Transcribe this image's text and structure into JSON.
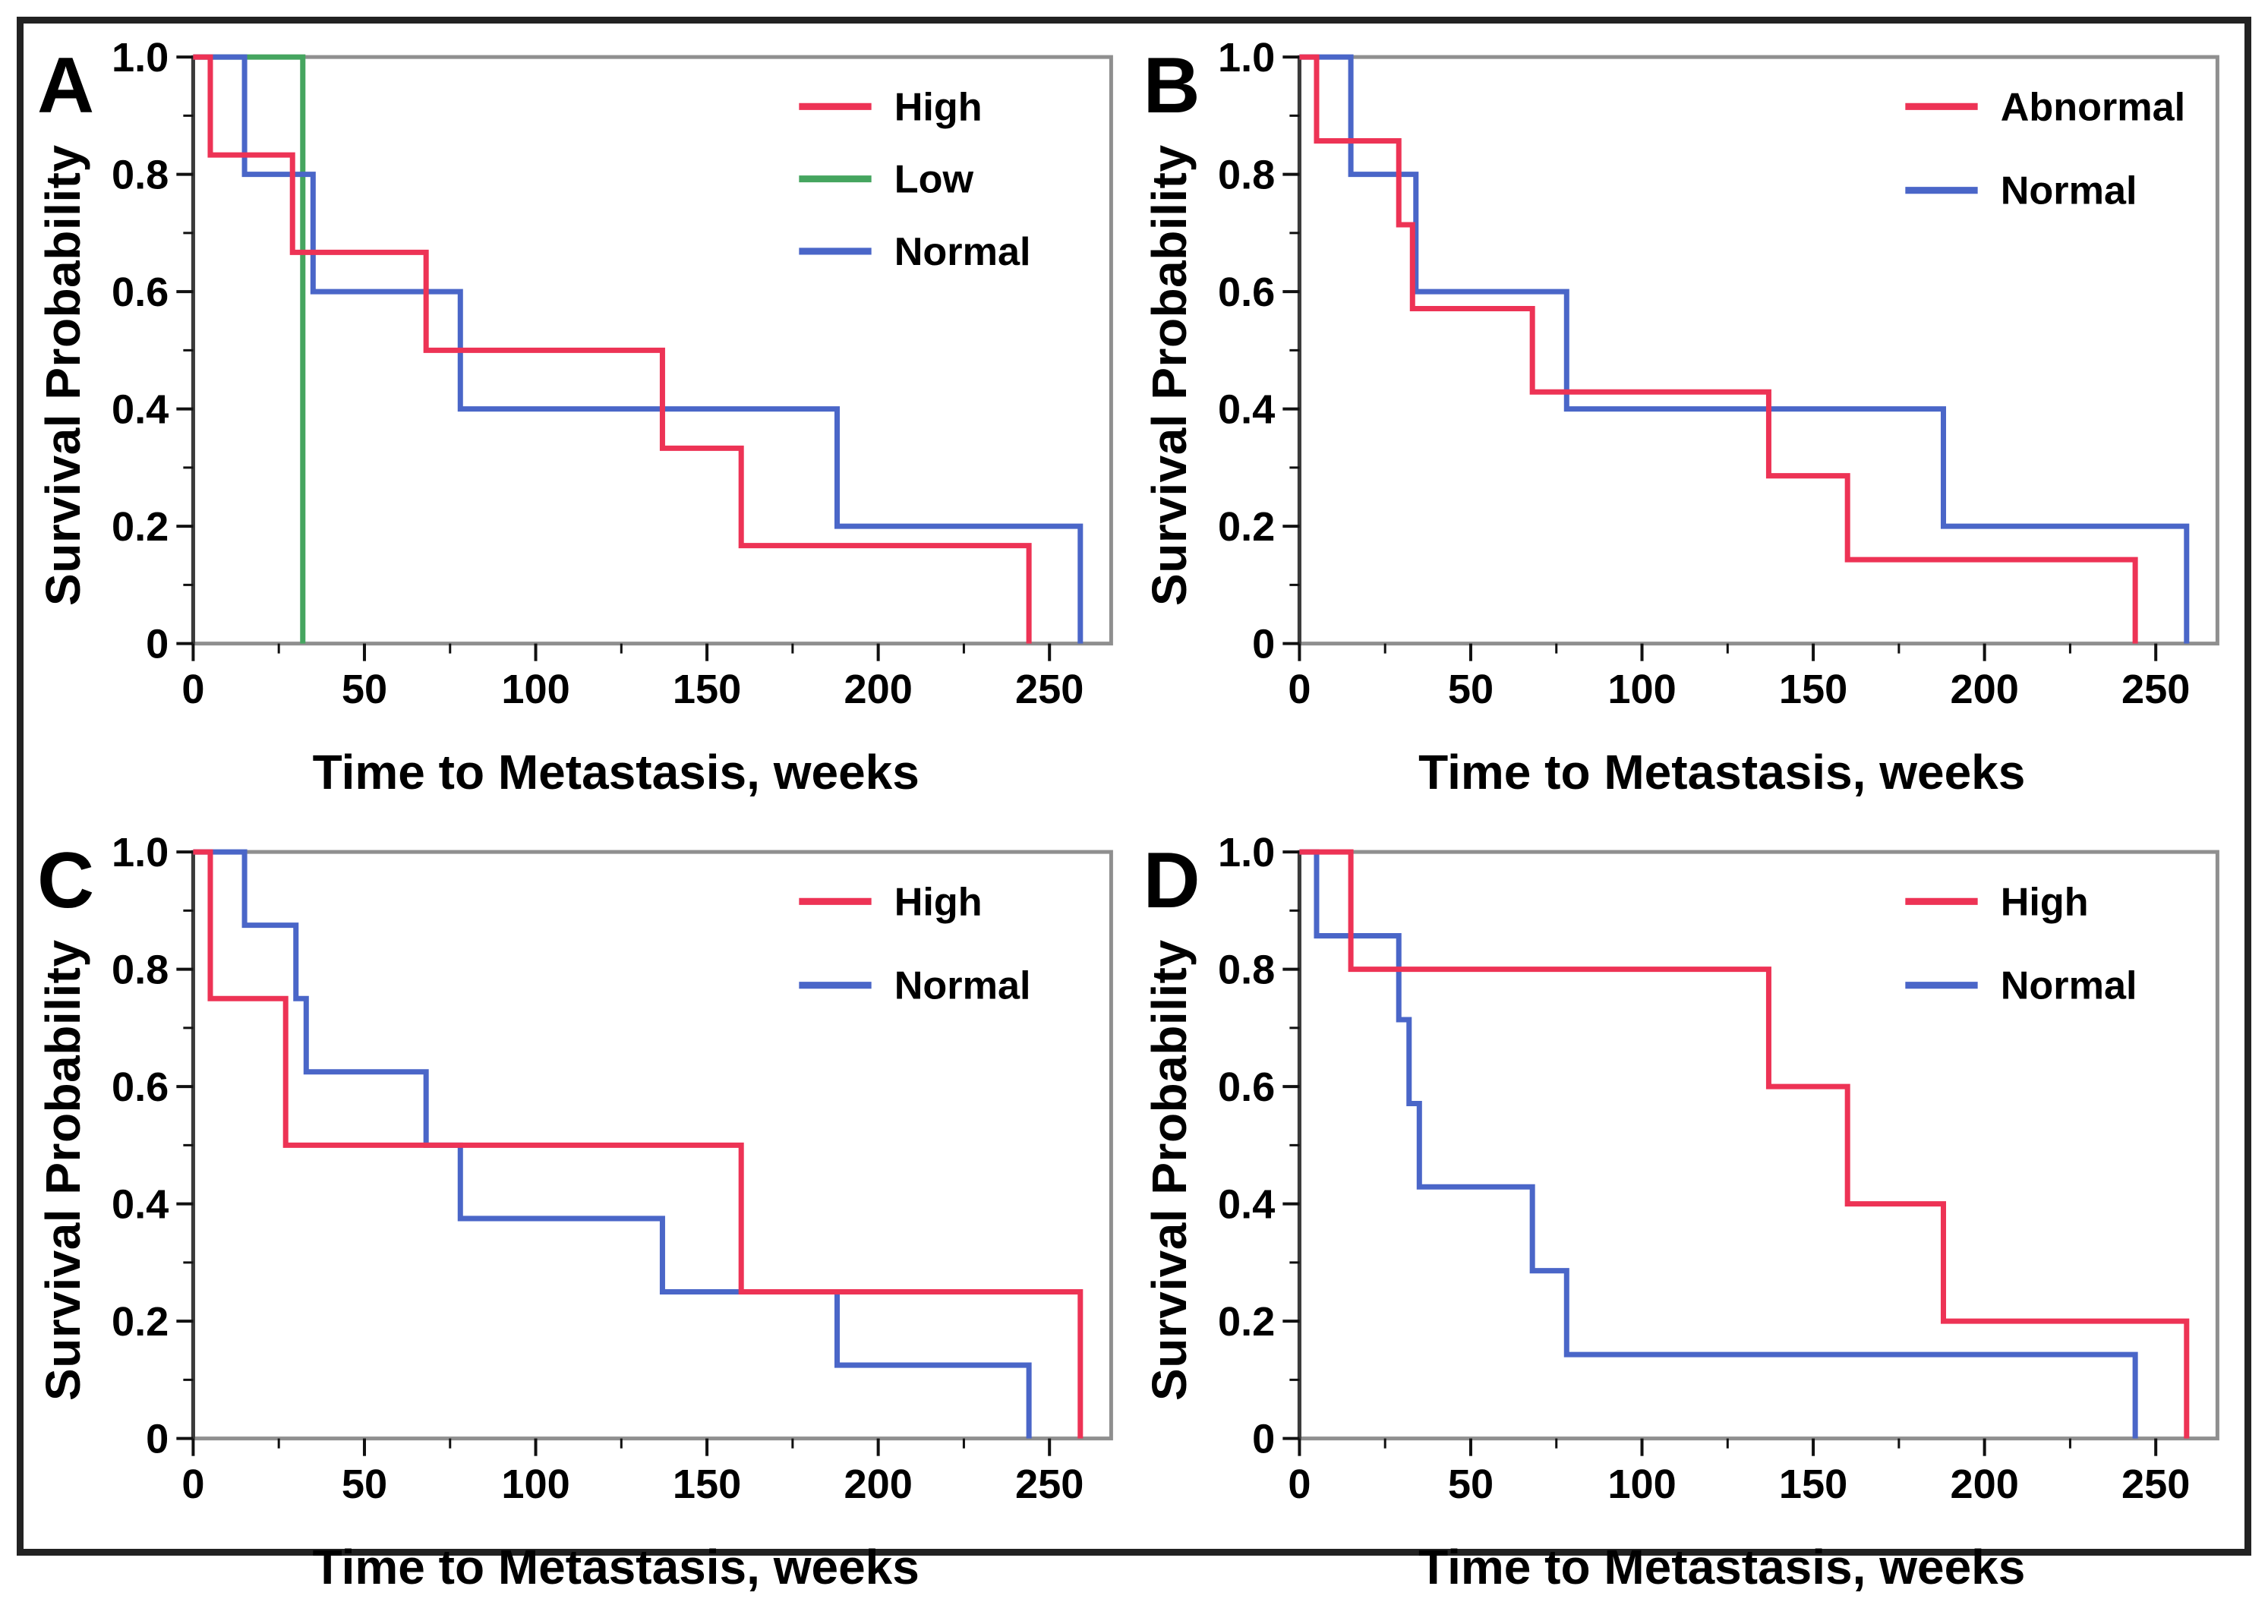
{
  "figure": {
    "background": "#ffffff",
    "border_color": "#222222",
    "frame_color": "#8f8f8f",
    "axis_color": "#3a3a3a",
    "tick_color": "#111111",
    "text_color": "#000000",
    "series_colors": {
      "red": "#ED3355",
      "green": "#45A55F",
      "blue": "#4A66C8"
    }
  },
  "chart_data": [
    {
      "panel_label": "A",
      "type": "line",
      "subtype": "kaplan-meier-step",
      "title": "",
      "xlabel": "Time to Metastasis, weeks",
      "ylabel": "Survival Probability",
      "xlim": [
        0,
        268
      ],
      "ylim": [
        0,
        1.0
      ],
      "xticks": [
        0,
        50,
        100,
        150,
        200,
        250
      ],
      "xtick_labels": [
        "0",
        "50",
        "100",
        "150",
        "200",
        "250"
      ],
      "xticks_minor": [
        25,
        75,
        125,
        175,
        225
      ],
      "yticks": [
        0,
        0.2,
        0.4,
        0.6,
        0.8,
        1.0
      ],
      "ytick_labels": [
        "0",
        "0.2",
        "0.4",
        "0.6",
        "0.8",
        "1.0"
      ],
      "yticks_minor": [
        0.1,
        0.3,
        0.5,
        0.7,
        0.9
      ],
      "grid": false,
      "legend_position": "top-right",
      "start_probability": 1.0,
      "series": [
        {
          "name": "High",
          "color": "#ED3355",
          "events": [
            [
              5,
              0.833
            ],
            [
              29,
              0.667
            ],
            [
              68,
              0.5
            ],
            [
              137,
              0.333
            ],
            [
              160,
              0.167
            ],
            [
              244,
              0
            ]
          ]
        },
        {
          "name": "Low",
          "color": "#45A55F",
          "events": [
            [
              32,
              0
            ]
          ]
        },
        {
          "name": "Normal",
          "color": "#4A66C8",
          "events": [
            [
              15,
              0.8
            ],
            [
              35,
              0.6
            ],
            [
              78,
              0.4
            ],
            [
              188,
              0.2
            ],
            [
              259,
              0
            ]
          ]
        }
      ],
      "draw_order": [
        1,
        2,
        0
      ],
      "legend_rows_y": [
        95,
        190,
        285
      ]
    },
    {
      "panel_label": "B",
      "type": "line",
      "subtype": "kaplan-meier-step",
      "title": "",
      "xlabel": "Time to Metastasis, weeks",
      "ylabel": "Survival Probability",
      "xlim": [
        0,
        268
      ],
      "ylim": [
        0,
        1.0
      ],
      "xticks": [
        0,
        50,
        100,
        150,
        200,
        250
      ],
      "xtick_labels": [
        "0",
        "50",
        "100",
        "150",
        "200",
        "250"
      ],
      "xticks_minor": [
        25,
        75,
        125,
        175,
        225
      ],
      "yticks": [
        0,
        0.2,
        0.4,
        0.6,
        0.8,
        1.0
      ],
      "ytick_labels": [
        "0",
        "0.2",
        "0.4",
        "0.6",
        "0.8",
        "1.0"
      ],
      "yticks_minor": [
        0.1,
        0.3,
        0.5,
        0.7,
        0.9
      ],
      "grid": false,
      "legend_position": "top-right",
      "start_probability": 1.0,
      "series": [
        {
          "name": "Abnormal",
          "color": "#ED3355",
          "events": [
            [
              5,
              0.857
            ],
            [
              29,
              0.714
            ],
            [
              33,
              0.571
            ],
            [
              68,
              0.429
            ],
            [
              137,
              0.286
            ],
            [
              160,
              0.143
            ],
            [
              244,
              0
            ]
          ]
        },
        {
          "name": "Normal",
          "color": "#4A66C8",
          "events": [
            [
              15,
              0.8
            ],
            [
              34,
              0.6
            ],
            [
              78,
              0.4
            ],
            [
              188,
              0.2
            ],
            [
              259,
              0
            ]
          ]
        }
      ],
      "draw_order": [
        1,
        0
      ],
      "legend_rows_y": [
        95,
        205
      ]
    },
    {
      "panel_label": "C",
      "type": "line",
      "subtype": "kaplan-meier-step",
      "title": "",
      "xlabel": "Time to Metastasis, weeks",
      "ylabel": "Survival Probability",
      "xlim": [
        0,
        268
      ],
      "ylim": [
        0,
        1.0
      ],
      "xticks": [
        0,
        50,
        100,
        150,
        200,
        250
      ],
      "xtick_labels": [
        "0",
        "50",
        "100",
        "150",
        "200",
        "250"
      ],
      "xticks_minor": [
        25,
        75,
        125,
        175,
        225
      ],
      "yticks": [
        0,
        0.2,
        0.4,
        0.6,
        0.8,
        1.0
      ],
      "ytick_labels": [
        "0",
        "0.2",
        "0.4",
        "0.6",
        "0.8",
        "1.0"
      ],
      "yticks_minor": [
        0.1,
        0.3,
        0.5,
        0.7,
        0.9
      ],
      "grid": false,
      "legend_position": "top-right",
      "start_probability": 1.0,
      "series": [
        {
          "name": "High",
          "color": "#ED3355",
          "events": [
            [
              5,
              0.75
            ],
            [
              27,
              0.5
            ],
            [
              160,
              0.25
            ],
            [
              259,
              0
            ]
          ]
        },
        {
          "name": "Normal",
          "color": "#4A66C8",
          "events": [
            [
              15,
              0.875
            ],
            [
              30,
              0.75
            ],
            [
              33,
              0.625
            ],
            [
              68,
              0.5
            ],
            [
              78,
              0.375
            ],
            [
              137,
              0.25
            ],
            [
              188,
              0.125
            ],
            [
              244,
              0
            ]
          ]
        }
      ],
      "draw_order": [
        1,
        0
      ],
      "legend_rows_y": [
        95,
        205
      ]
    },
    {
      "panel_label": "D",
      "type": "line",
      "subtype": "kaplan-meier-step",
      "title": "",
      "xlabel": "Time to Metastasis, weeks",
      "ylabel": "Survival Probability",
      "xlim": [
        0,
        268
      ],
      "ylim": [
        0,
        1.0
      ],
      "xticks": [
        0,
        50,
        100,
        150,
        200,
        250
      ],
      "xtick_labels": [
        "0",
        "50",
        "100",
        "150",
        "200",
        "250"
      ],
      "xticks_minor": [
        25,
        75,
        125,
        175,
        225
      ],
      "yticks": [
        0,
        0.2,
        0.4,
        0.6,
        0.8,
        1.0
      ],
      "ytick_labels": [
        "0",
        "0.2",
        "0.4",
        "0.6",
        "0.8",
        "1.0"
      ],
      "yticks_minor": [
        0.1,
        0.3,
        0.5,
        0.7,
        0.9
      ],
      "grid": false,
      "legend_position": "top-right",
      "start_probability": 1.0,
      "series": [
        {
          "name": "High",
          "color": "#ED3355",
          "events": [
            [
              15,
              0.8
            ],
            [
              137,
              0.6
            ],
            [
              160,
              0.4
            ],
            [
              188,
              0.2
            ],
            [
              259,
              0
            ]
          ]
        },
        {
          "name": "Normal",
          "color": "#4A66C8",
          "events": [
            [
              5,
              0.857
            ],
            [
              29,
              0.714
            ],
            [
              32,
              0.571
            ],
            [
              35,
              0.429
            ],
            [
              68,
              0.286
            ],
            [
              78,
              0.143
            ],
            [
              244,
              0
            ]
          ]
        }
      ],
      "draw_order": [
        1,
        0
      ],
      "legend_rows_y": [
        95,
        205
      ]
    }
  ]
}
